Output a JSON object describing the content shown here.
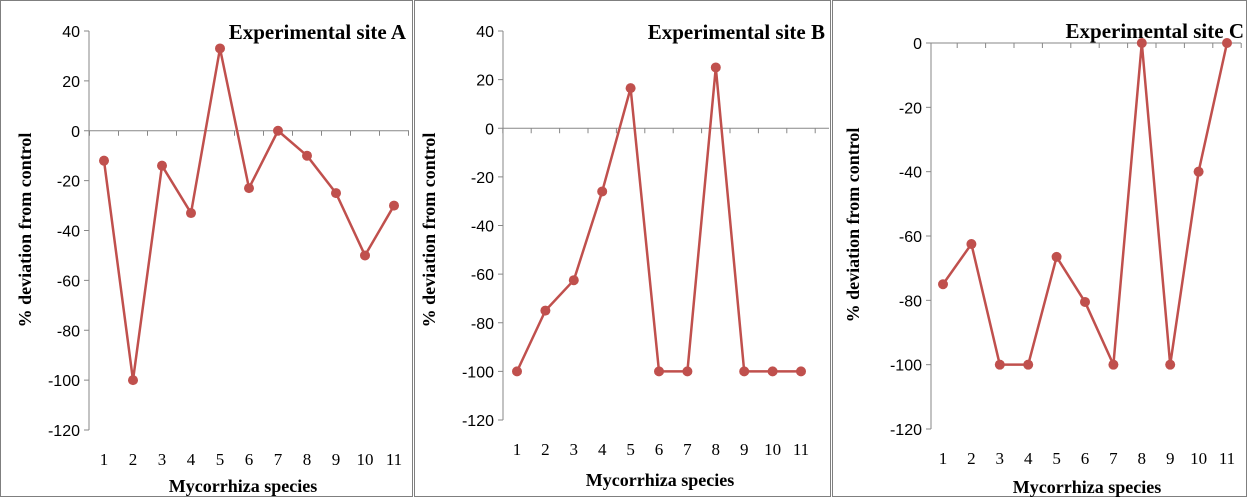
{
  "chart_data": [
    {
      "type": "line",
      "title": "Experimental site A",
      "xlabel": "Mycorrhiza species",
      "ylabel": "% deviation from control",
      "categories": [
        "1",
        "2",
        "3",
        "4",
        "5",
        "6",
        "7",
        "8",
        "9",
        "10",
        "11"
      ],
      "values": [
        -12,
        -100,
        -14,
        -33,
        33,
        -23,
        0,
        -10,
        -25,
        -50,
        -30
      ],
      "ylim": [
        -120,
        40
      ],
      "yticks": [
        40,
        20,
        0,
        -20,
        -40,
        -60,
        -80,
        -100,
        -120
      ],
      "grid": false,
      "line_color": "#c0504d"
    },
    {
      "type": "line",
      "title": "Experimental site B",
      "xlabel": "Mycorrhiza species",
      "ylabel": "% deviation from control",
      "categories": [
        "1",
        "2",
        "3",
        "4",
        "5",
        "6",
        "7",
        "8",
        "9",
        "10",
        "11"
      ],
      "values": [
        -100,
        -75,
        -62.5,
        -26,
        16.5,
        -100,
        -100,
        25,
        -100,
        -100,
        -100
      ],
      "ylim": [
        -120,
        40
      ],
      "yticks": [
        40,
        20,
        0,
        -20,
        -40,
        -60,
        -80,
        -100,
        -120
      ],
      "grid": false,
      "line_color": "#c0504d"
    },
    {
      "type": "line",
      "title": "Experimental site C",
      "xlabel": "Mycorrhiza species",
      "ylabel": "% deviation from control",
      "categories": [
        "1",
        "2",
        "3",
        "4",
        "5",
        "6",
        "7",
        "8",
        "9",
        "10",
        "11"
      ],
      "values": [
        -75,
        -62.5,
        -100,
        -100,
        -66.5,
        -80.5,
        -100,
        0,
        -100,
        -40,
        0
      ],
      "ylim": [
        -120,
        0
      ],
      "yticks": [
        0,
        -20,
        -40,
        -60,
        -80,
        -100,
        -120
      ],
      "grid": false,
      "line_color": "#c0504d"
    }
  ]
}
